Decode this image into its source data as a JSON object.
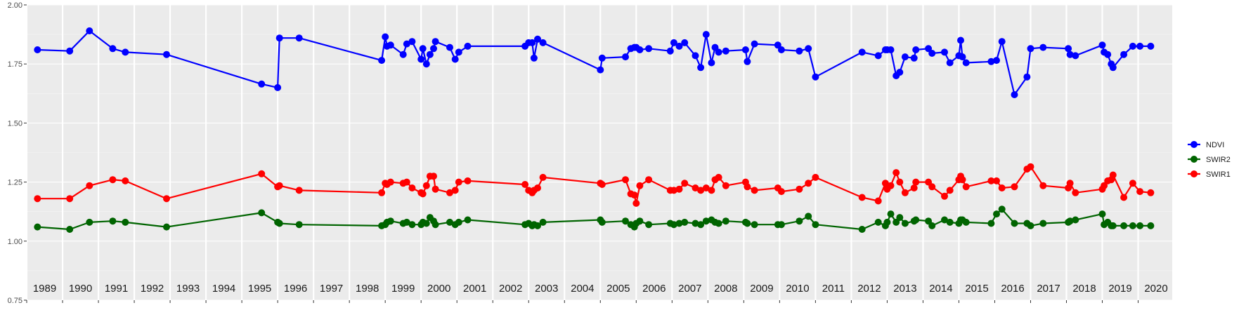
{
  "chart_data": {
    "type": "line",
    "title": "",
    "xlabel": "",
    "ylabel": "",
    "xlim": [
      1989.0,
      2020.95
    ],
    "ylim": [
      0.75,
      2.0
    ],
    "y_ticks": [
      "0.75",
      "1.00",
      "1.25",
      "1.50",
      "1.75",
      "2.00"
    ],
    "y_tick_values": [
      0.75,
      1.0,
      1.25,
      1.5,
      1.75,
      2.0
    ],
    "year_labels": [
      "1989",
      "1990",
      "1991",
      "1992",
      "1993",
      "1994",
      "1995",
      "1996",
      "1997",
      "1998",
      "1999",
      "2000",
      "2001",
      "2002",
      "2003",
      "2004",
      "2005",
      "2006",
      "2007",
      "2008",
      "2009",
      "2010",
      "2011",
      "2012",
      "2013",
      "2014",
      "2015",
      "2016",
      "2017",
      "2018",
      "2019",
      "2020"
    ],
    "grid": true,
    "legend_position": "right",
    "x": [
      1989.3,
      1990.2,
      1990.75,
      1991.4,
      1991.75,
      1992.9,
      1995.55,
      1996.0,
      1996.05,
      1996.6,
      1998.9,
      1999.0,
      1999.05,
      1999.15,
      1999.5,
      1999.6,
      1999.75,
      2000.0,
      2000.05,
      2000.15,
      2000.25,
      2000.35,
      2000.4,
      2000.8,
      2000.95,
      2001.05,
      2001.3,
      2002.9,
      2003.0,
      2003.1,
      2003.15,
      2003.25,
      2003.4,
      2005.0,
      2005.05,
      2005.7,
      2005.85,
      2005.95,
      2006.0,
      2006.1,
      2006.35,
      2006.95,
      2007.05,
      2007.2,
      2007.35,
      2007.65,
      2007.8,
      2007.95,
      2008.1,
      2008.2,
      2008.3,
      2008.5,
      2009.05,
      2009.1,
      2009.3,
      2009.95,
      2010.05,
      2010.55,
      2010.8,
      2011.0,
      2012.3,
      2012.75,
      2012.95,
      2013.0,
      2013.1,
      2013.25,
      2013.35,
      2013.5,
      2013.75,
      2013.8,
      2014.15,
      2014.25,
      2014.6,
      2014.75,
      2015.0,
      2015.05,
      2015.1,
      2015.2,
      2015.9,
      2016.05,
      2016.2,
      2016.55,
      2016.9,
      2017.0,
      2017.35,
      2018.05,
      2018.1,
      2018.25,
      2019.0,
      2019.05,
      2019.15,
      2019.25,
      2019.3,
      2019.6,
      2019.85,
      2020.05,
      2020.35
    ],
    "series": [
      {
        "name": "NDVI",
        "color": "#0000ff",
        "values": [
          1.81,
          1.805,
          1.89,
          1.815,
          1.8,
          1.79,
          1.665,
          1.65,
          1.86,
          1.86,
          1.765,
          1.865,
          1.825,
          1.83,
          1.79,
          1.835,
          1.845,
          1.77,
          1.815,
          1.75,
          1.79,
          1.815,
          1.845,
          1.82,
          1.77,
          1.8,
          1.825,
          1.825,
          1.84,
          1.84,
          1.775,
          1.855,
          1.84,
          1.725,
          1.775,
          1.78,
          1.815,
          1.82,
          1.82,
          1.81,
          1.815,
          1.805,
          1.84,
          1.825,
          1.84,
          1.785,
          1.735,
          1.875,
          1.755,
          1.82,
          1.8,
          1.805,
          1.81,
          1.76,
          1.835,
          1.83,
          1.81,
          1.805,
          1.815,
          1.695,
          1.8,
          1.785,
          1.81,
          1.81,
          1.81,
          1.7,
          1.715,
          1.78,
          1.775,
          1.81,
          1.815,
          1.795,
          1.8,
          1.755,
          1.785,
          1.85,
          1.78,
          1.755,
          1.76,
          1.765,
          1.845,
          1.62,
          1.695,
          1.815,
          1.82,
          1.815,
          1.79,
          1.785,
          1.83,
          1.8,
          1.79,
          1.75,
          1.735,
          1.79,
          1.825,
          1.825,
          1.825
        ]
      },
      {
        "name": "SWIR2",
        "color": "#006400",
        "values": [
          1.06,
          1.05,
          1.08,
          1.085,
          1.08,
          1.06,
          1.12,
          1.08,
          1.075,
          1.07,
          1.065,
          1.07,
          1.08,
          1.085,
          1.075,
          1.08,
          1.07,
          1.07,
          1.08,
          1.075,
          1.1,
          1.085,
          1.07,
          1.08,
          1.07,
          1.08,
          1.09,
          1.07,
          1.075,
          1.065,
          1.07,
          1.065,
          1.08,
          1.09,
          1.08,
          1.085,
          1.07,
          1.06,
          1.075,
          1.085,
          1.07,
          1.075,
          1.07,
          1.075,
          1.08,
          1.075,
          1.07,
          1.085,
          1.09,
          1.08,
          1.075,
          1.085,
          1.08,
          1.075,
          1.07,
          1.07,
          1.07,
          1.085,
          1.105,
          1.07,
          1.05,
          1.08,
          1.065,
          1.08,
          1.115,
          1.08,
          1.1,
          1.075,
          1.085,
          1.09,
          1.085,
          1.065,
          1.09,
          1.08,
          1.075,
          1.09,
          1.09,
          1.08,
          1.075,
          1.115,
          1.135,
          1.075,
          1.075,
          1.065,
          1.075,
          1.08,
          1.085,
          1.09,
          1.115,
          1.07,
          1.08,
          1.065,
          1.065,
          1.065,
          1.065,
          1.065,
          1.065
        ]
      },
      {
        "name": "SWIR1",
        "color": "#ff0000",
        "values": [
          1.18,
          1.18,
          1.235,
          1.26,
          1.255,
          1.18,
          1.285,
          1.23,
          1.235,
          1.215,
          1.205,
          1.245,
          1.24,
          1.25,
          1.245,
          1.25,
          1.225,
          1.205,
          1.2,
          1.235,
          1.275,
          1.275,
          1.22,
          1.205,
          1.215,
          1.25,
          1.255,
          1.24,
          1.215,
          1.205,
          1.215,
          1.225,
          1.27,
          1.245,
          1.24,
          1.26,
          1.2,
          1.195,
          1.16,
          1.235,
          1.26,
          1.215,
          1.215,
          1.22,
          1.245,
          1.225,
          1.215,
          1.225,
          1.215,
          1.26,
          1.27,
          1.235,
          1.25,
          1.23,
          1.215,
          1.225,
          1.21,
          1.22,
          1.245,
          1.27,
          1.185,
          1.17,
          1.245,
          1.22,
          1.235,
          1.29,
          1.25,
          1.205,
          1.225,
          1.25,
          1.25,
          1.23,
          1.19,
          1.215,
          1.26,
          1.275,
          1.26,
          1.23,
          1.255,
          1.255,
          1.225,
          1.23,
          1.305,
          1.315,
          1.235,
          1.225,
          1.245,
          1.205,
          1.22,
          1.235,
          1.255,
          1.26,
          1.28,
          1.185,
          1.245,
          1.21,
          1.205
        ]
      }
    ]
  }
}
